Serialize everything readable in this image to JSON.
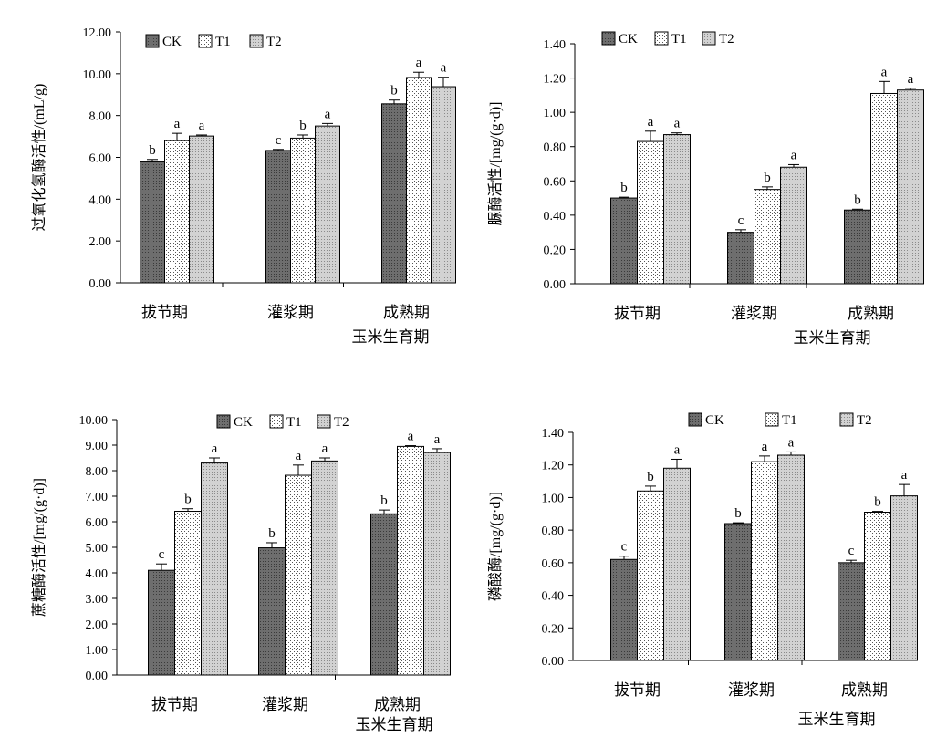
{
  "colors": {
    "CK": "#6b6b6b",
    "T1": "#ffffff",
    "T2": "#c8c8c8",
    "axis": "#000000"
  },
  "chart_data": [
    {
      "type": "bar",
      "ylabel": "过氧化氢酶活性/(mL/g)",
      "xlabel": "玉米生育期",
      "categories": [
        "拔节期",
        "灌浆期",
        "成熟期"
      ],
      "ylim": [
        0,
        12
      ],
      "yticks": [
        "0.00",
        "2.00",
        "4.00",
        "6.00",
        "8.00",
        "10.00",
        "12.00"
      ],
      "legend_position": "top-left",
      "series": [
        {
          "name": "CK",
          "values": [
            5.78,
            6.33,
            8.56
          ],
          "errors": [
            0.12,
            0.05,
            0.18
          ],
          "letters": [
            "b",
            "c",
            "b"
          ]
        },
        {
          "name": "T1",
          "values": [
            6.8,
            6.92,
            9.82
          ],
          "errors": [
            0.35,
            0.15,
            0.25
          ],
          "letters": [
            "a",
            "b",
            "a"
          ]
        },
        {
          "name": "T2",
          "values": [
            7.02,
            7.5,
            9.38
          ],
          "errors": [
            0.05,
            0.12,
            0.45
          ],
          "letters": [
            "a",
            "a",
            "a"
          ]
        }
      ]
    },
    {
      "type": "bar",
      "ylabel": "脲酶活性/[mg/(g·d)]",
      "xlabel": "玉米生育期",
      "categories": [
        "拔节期",
        "灌浆期",
        "成熟期"
      ],
      "ylim": [
        0,
        1.4
      ],
      "yticks": [
        "0.00",
        "0.20",
        "0.40",
        "0.60",
        "0.80",
        "1.00",
        "1.20",
        "1.40"
      ],
      "legend_position": "top-left",
      "series": [
        {
          "name": "CK",
          "values": [
            0.5,
            0.3,
            0.43
          ],
          "errors": [
            0.005,
            0.015,
            0.005
          ],
          "letters": [
            "b",
            "c",
            "b"
          ]
        },
        {
          "name": "T1",
          "values": [
            0.83,
            0.55,
            1.11
          ],
          "errors": [
            0.06,
            0.015,
            0.07
          ],
          "letters": [
            "a",
            "b",
            "a"
          ]
        },
        {
          "name": "T2",
          "values": [
            0.87,
            0.68,
            1.13
          ],
          "errors": [
            0.01,
            0.015,
            0.01
          ],
          "letters": [
            "a",
            "a",
            "a"
          ]
        }
      ]
    },
    {
      "type": "bar",
      "ylabel": "蔗糖酶活性/[mg/(g·d)]",
      "xlabel": "玉米生育期",
      "categories": [
        "拔节期",
        "灌浆期",
        "成熟期"
      ],
      "ylim": [
        0,
        10
      ],
      "yticks": [
        "0.00",
        "1.00",
        "2.00",
        "3.00",
        "4.00",
        "5.00",
        "6.00",
        "7.00",
        "8.00",
        "9.00",
        "10.00"
      ],
      "legend_position": "top-center",
      "series": [
        {
          "name": "CK",
          "values": [
            4.1,
            4.98,
            6.31
          ],
          "errors": [
            0.25,
            0.2,
            0.15
          ],
          "letters": [
            "c",
            "b",
            "b"
          ]
        },
        {
          "name": "T1",
          "values": [
            6.41,
            7.82,
            8.95
          ],
          "errors": [
            0.1,
            0.4,
            0.03
          ],
          "letters": [
            "b",
            "a",
            "a"
          ]
        },
        {
          "name": "T2",
          "values": [
            8.3,
            8.38,
            8.71
          ],
          "errors": [
            0.2,
            0.12,
            0.15
          ],
          "letters": [
            "a",
            "a",
            "a"
          ]
        }
      ]
    },
    {
      "type": "bar",
      "ylabel": "磷酸酶/[mg/(g·d)]",
      "xlabel": "玉米生育期",
      "categories": [
        "拔节期",
        "灌浆期",
        "成熟期"
      ],
      "ylim": [
        0,
        1.4
      ],
      "yticks": [
        "0.00",
        "0.20",
        "0.40",
        "0.60",
        "0.80",
        "1.00",
        "1.20",
        "1.40"
      ],
      "legend_position": "top-center",
      "series": [
        {
          "name": "CK",
          "values": [
            0.62,
            0.84,
            0.6
          ],
          "errors": [
            0.02,
            0.005,
            0.015
          ],
          "letters": [
            "c",
            "b",
            "c"
          ]
        },
        {
          "name": "T1",
          "values": [
            1.04,
            1.22,
            0.91
          ],
          "errors": [
            0.03,
            0.035,
            0.005
          ],
          "letters": [
            "b",
            "a",
            "b"
          ]
        },
        {
          "name": "T2",
          "values": [
            1.18,
            1.26,
            1.01
          ],
          "errors": [
            0.055,
            0.02,
            0.07
          ],
          "letters": [
            "a",
            "a",
            "a"
          ]
        }
      ]
    }
  ]
}
